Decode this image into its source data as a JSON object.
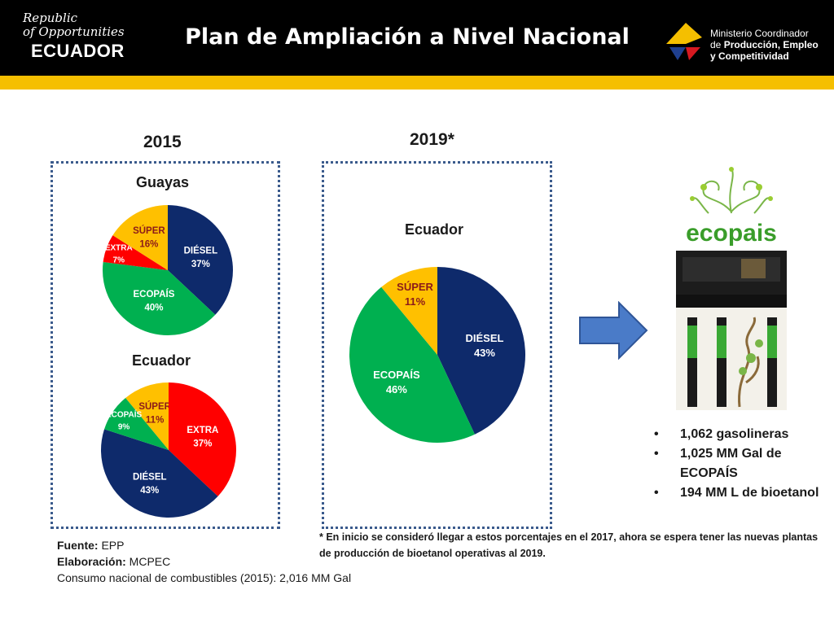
{
  "header": {
    "logo_script_line1": "Republic",
    "logo_script_line2": "of Opportunities",
    "logo_country": "ECUADOR",
    "title": "Plan de Ampliación a Nivel Nacional",
    "ministry_line1": "Ministerio Coordinador",
    "ministry_line2_prefix": "de ",
    "ministry_line2_bold": "Producción, Empleo",
    "ministry_line3": "y Competitividad"
  },
  "colors": {
    "header_bg": "#000000",
    "stripe": "#f5bf00",
    "diesel": "#0e2a6b",
    "ecopais": "#00b050",
    "super": "#ffc000",
    "extra": "#ff0000",
    "panel_border": "#3a5a8c",
    "arrow": "#4a7bc8"
  },
  "years": {
    "left": "2015",
    "right": "2019*"
  },
  "chart_data": [
    {
      "type": "pie",
      "title": "Guayas",
      "categories": [
        "DIÉSEL",
        "ECOPAÍS",
        "EXTRA",
        "SÚPER"
      ],
      "values": [
        37,
        40,
        7,
        16
      ],
      "labels": [
        "37%",
        "40%",
        "7%",
        "16%"
      ]
    },
    {
      "type": "pie",
      "title": "Ecuador",
      "categories": [
        "EXTRA",
        "DIÉSEL",
        "ECOPAÍS",
        "SÚPER"
      ],
      "values": [
        37,
        43,
        9,
        11
      ],
      "labels": [
        "37%",
        "43%",
        "9%",
        "11%"
      ]
    },
    {
      "type": "pie",
      "title": "Ecuador",
      "categories": [
        "DIÉSEL",
        "ECOPAÍS",
        "SÚPER"
      ],
      "values": [
        43,
        46,
        11
      ],
      "labels": [
        "43%",
        "46%",
        "11%"
      ]
    }
  ],
  "ecopais_image": {
    "brand_text": "ecopais"
  },
  "bullets": [
    "1,062 gasolineras",
    "1,025 MM Gal de ECOPAÍS",
    "194 MM L de bioetanol"
  ],
  "footnote": "* En inicio se consideró llegar a estos porcentajes en el 2017, ahora se espera tener las nuevas plantas de producción de bioetanol operativas al 2019.",
  "source": {
    "fuente_label": "Fuente:",
    "fuente_value": " EPP",
    "elab_label": "Elaboración:",
    "elab_value": " MCPEC",
    "consumo": "Consumo nacional de combustibles (2015): 2,016 MM Gal"
  }
}
